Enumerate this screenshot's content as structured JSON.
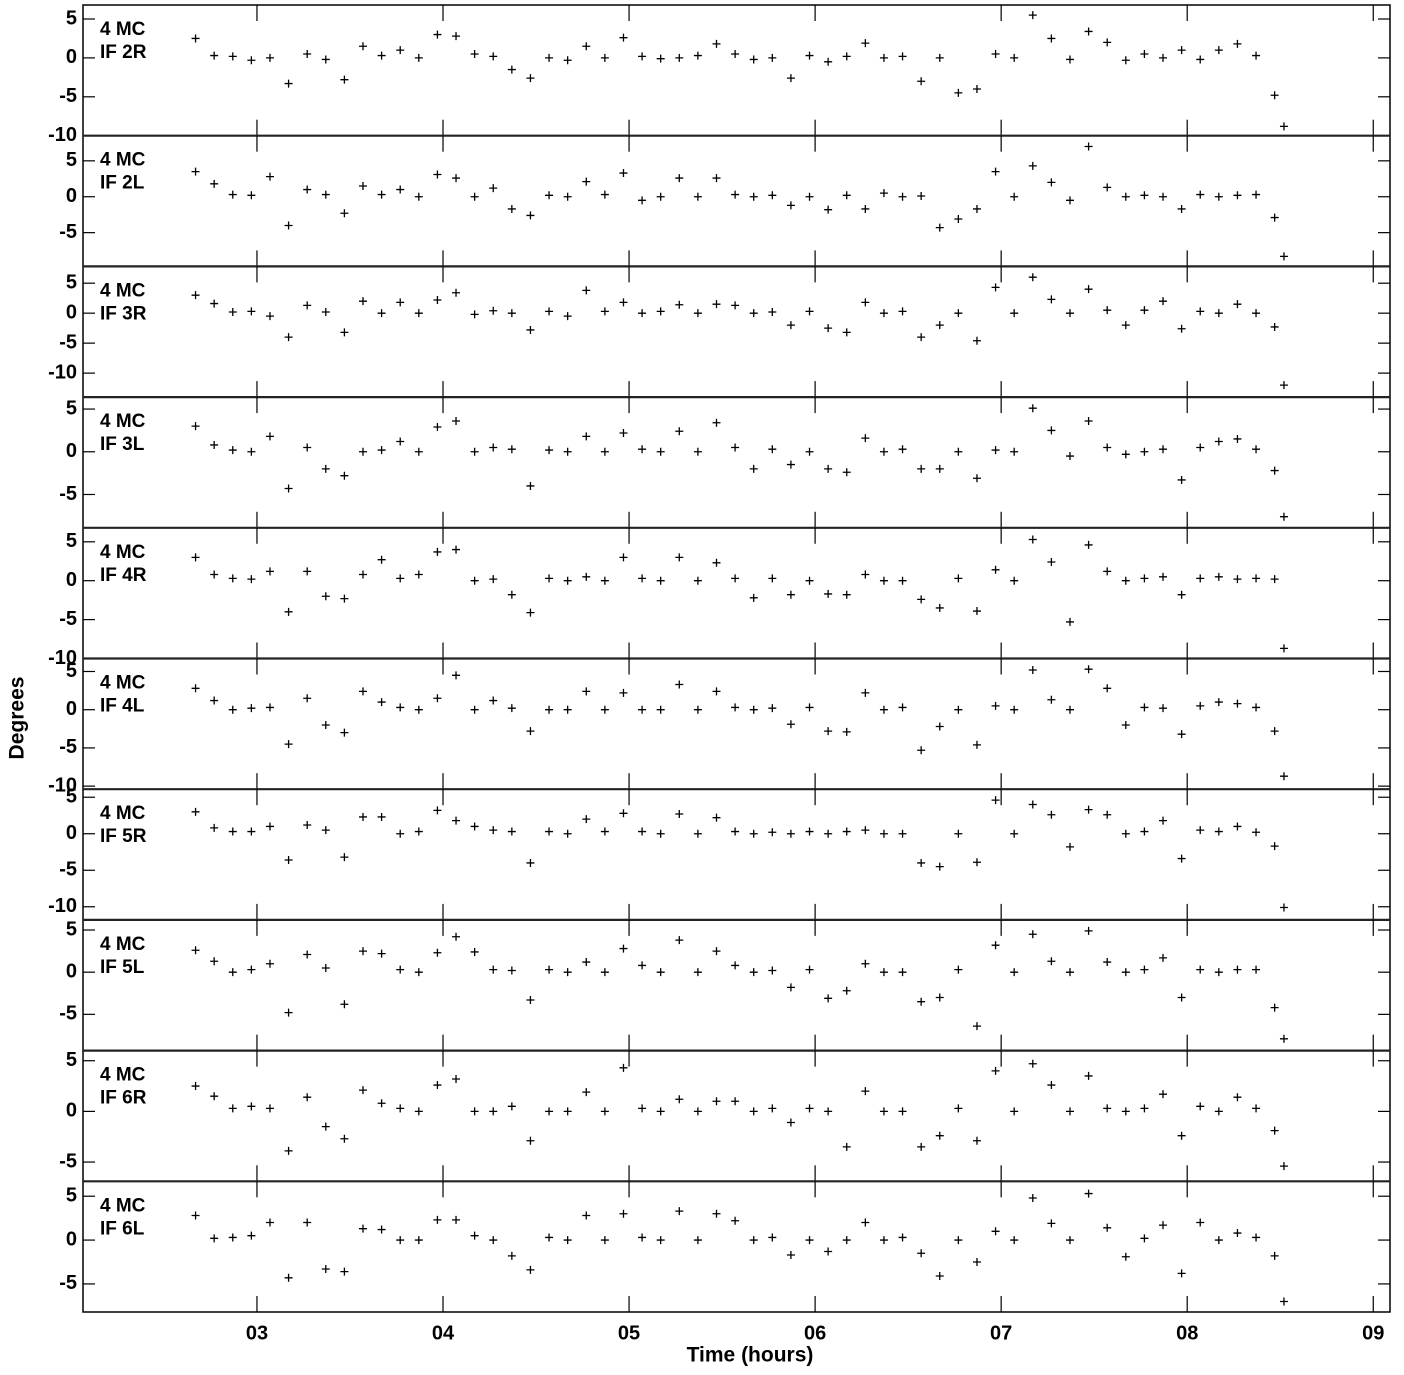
{
  "chart_data": {
    "type": "scatter",
    "xlabel": "Time (hours)",
    "ylabel": "Degrees",
    "color": "#000000",
    "xlim": [
      2.065,
      9.09
    ],
    "xticks": [
      {
        "value": 3,
        "label": "03"
      },
      {
        "value": 4,
        "label": "04"
      },
      {
        "value": 5,
        "label": "05"
      },
      {
        "value": 6,
        "label": "06"
      },
      {
        "value": 7,
        "label": "07"
      },
      {
        "value": 8,
        "label": "08"
      },
      {
        "value": 9,
        "label": "09"
      }
    ],
    "x": [
      2.67,
      2.77,
      2.87,
      2.97,
      3.07,
      3.17,
      3.27,
      3.37,
      3.47,
      3.57,
      3.67,
      3.77,
      3.87,
      3.97,
      4.07,
      4.17,
      4.27,
      4.37,
      4.47,
      4.57,
      4.67,
      4.77,
      4.87,
      4.97,
      5.07,
      5.17,
      5.27,
      5.37,
      5.47,
      5.57,
      5.67,
      5.77,
      5.87,
      5.97,
      6.07,
      6.17,
      6.27,
      6.37,
      6.47,
      6.57,
      6.67,
      6.77,
      6.87,
      6.97,
      7.07,
      7.17,
      7.27,
      7.37,
      7.47,
      7.57,
      7.67,
      7.77,
      7.87,
      7.97,
      8.07,
      8.17,
      8.27,
      8.37,
      8.47,
      8.52
    ],
    "panels": [
      {
        "labels": [
          "4 MC",
          "IF 2R"
        ],
        "ylim": [
          -10,
          6.8
        ],
        "yticks": [
          -10,
          -5,
          0,
          5
        ],
        "values": [
          2.5,
          0.3,
          0.2,
          -0.3,
          0,
          -3.3,
          0.5,
          -0.2,
          -2.8,
          1.5,
          0.3,
          1,
          0,
          3,
          2.8,
          0.5,
          0.2,
          -1.5,
          -2.6,
          0,
          -0.3,
          1.5,
          0,
          2.6,
          0.2,
          -0.1,
          0,
          0.3,
          1.8,
          0.5,
          -0.2,
          0,
          -2.6,
          0.3,
          -0.5,
          0.2,
          1.9,
          0,
          0.2,
          -3,
          0,
          -4.5,
          -4,
          0.5,
          0,
          5.5,
          2.5,
          -0.2,
          3.4,
          2,
          -0.3,
          0.5,
          0,
          1,
          -0.2,
          1,
          1.8,
          0.3,
          -4.8,
          -8.8
        ]
      },
      {
        "labels": [
          "4 MC",
          "IF 2L"
        ],
        "ylim": [
          -9.7,
          8.5
        ],
        "yticks": [
          -5,
          0,
          5
        ],
        "values": [
          3.5,
          1.8,
          0.3,
          0.2,
          2.8,
          -4,
          1,
          0.3,
          -2.3,
          1.5,
          0.3,
          1,
          0,
          3.1,
          2.6,
          0,
          1.2,
          -1.7,
          -2.6,
          0.2,
          0,
          2.1,
          0.3,
          3.3,
          -0.5,
          0,
          2.6,
          0,
          2.6,
          0.3,
          0,
          0.2,
          -1.2,
          0,
          -1.8,
          0.2,
          -1.7,
          0.5,
          0,
          0.1,
          -4.3,
          -3.1,
          -1.7,
          3.5,
          0,
          4.3,
          2,
          -0.5,
          7,
          1.3,
          0,
          0.2,
          0,
          -1.7,
          0.3,
          0,
          0.2,
          0.3,
          -2.9,
          -8.3
        ]
      },
      {
        "labels": [
          "4 MC",
          "IF 3R"
        ],
        "ylim": [
          -14,
          7.8
        ],
        "yticks": [
          -10,
          -5,
          0,
          5
        ],
        "values": [
          3,
          1.6,
          0.2,
          0.3,
          -0.5,
          -4,
          1.3,
          0.2,
          -3.2,
          2,
          0,
          1.8,
          0,
          2.2,
          3.4,
          -0.2,
          0.4,
          0,
          -2.8,
          0.3,
          -0.5,
          3.8,
          0.3,
          1.8,
          0,
          0.3,
          1.4,
          0,
          1.5,
          1.3,
          0,
          0.2,
          -2,
          0.3,
          -2.5,
          -3.2,
          1.8,
          0,
          0.3,
          -4,
          -2,
          0,
          -4.6,
          4.3,
          0,
          6,
          2.3,
          0,
          4,
          0.5,
          -2,
          0.5,
          2,
          -2.6,
          0.3,
          0,
          1.5,
          0,
          -2.3,
          -12
        ]
      },
      {
        "labels": [
          "4 MC",
          "IF 3L"
        ],
        "ylim": [
          -8.9,
          6.4
        ],
        "yticks": [
          -5,
          0,
          5
        ],
        "values": [
          3,
          0.8,
          0.2,
          0,
          1.8,
          -4.3,
          0.5,
          -2,
          -2.8,
          0,
          0.2,
          1.2,
          0,
          2.9,
          3.6,
          0,
          0.5,
          0.3,
          -4,
          0.2,
          0,
          1.8,
          0,
          2.2,
          0.3,
          0,
          2.4,
          0,
          3.4,
          0.5,
          -2,
          0.3,
          -1.5,
          0,
          -2,
          -2.4,
          1.6,
          0,
          0.3,
          -2,
          -2,
          0,
          -3.1,
          0.2,
          0,
          5.1,
          2.5,
          -0.5,
          3.6,
          0.5,
          -0.3,
          0,
          0.3,
          -3.3,
          0.5,
          1.2,
          1.5,
          0.3,
          -2.2,
          -7.6
        ]
      },
      {
        "labels": [
          "4 MC",
          "IF 4R"
        ],
        "ylim": [
          -10,
          6.8
        ],
        "yticks": [
          -10,
          -5,
          0,
          5
        ],
        "values": [
          3,
          0.8,
          0.3,
          0.2,
          1.2,
          -4,
          1.2,
          -2,
          -2.3,
          0.8,
          2.7,
          0.3,
          0.8,
          3.7,
          4,
          0,
          0.2,
          -1.8,
          -4.1,
          0.3,
          0,
          0.5,
          0,
          3,
          0.3,
          0,
          3,
          0,
          2.3,
          0.3,
          -2.2,
          0.3,
          -1.8,
          0,
          -1.7,
          -1.8,
          0.8,
          0,
          0,
          -2.4,
          -3.5,
          0.3,
          -3.9,
          1.4,
          0,
          5.3,
          2.4,
          -5.3,
          4.6,
          1.2,
          0,
          0.3,
          0.5,
          -1.8,
          0.3,
          0.5,
          0.2,
          0.3,
          0.2,
          -8.7
        ]
      },
      {
        "labels": [
          "4 MC",
          "IF 4L"
        ],
        "ylim": [
          -10.4,
          6.7
        ],
        "yticks": [
          -10,
          -5,
          0,
          5
        ],
        "values": [
          2.8,
          1.2,
          0,
          0.2,
          0.3,
          -4.5,
          1.5,
          -2,
          -3,
          2.4,
          1,
          0.3,
          0,
          1.5,
          4.5,
          0,
          1.2,
          0.2,
          -2.8,
          0,
          0,
          2.4,
          0,
          2.2,
          0,
          0,
          3.3,
          0,
          2.4,
          0.3,
          0,
          0.2,
          -1.9,
          0.3,
          -2.8,
          -2.9,
          2.2,
          0,
          0.3,
          -5.3,
          -2.2,
          0,
          -4.6,
          0.5,
          0,
          5.2,
          1.3,
          0,
          5.3,
          2.8,
          -2,
          0.3,
          0.2,
          -3.2,
          0.5,
          1,
          0.8,
          0.3,
          -2.8,
          -8.7
        ]
      },
      {
        "labels": [
          "4 MC",
          "IF 5R"
        ],
        "ylim": [
          -11.8,
          6.1
        ],
        "yticks": [
          -10,
          -5,
          0,
          5
        ],
        "values": [
          3,
          0.8,
          0.3,
          0.3,
          1,
          -3.6,
          1.2,
          0.5,
          -3.2,
          2.3,
          2.3,
          0,
          0.3,
          3.2,
          1.8,
          1,
          0.5,
          0.3,
          -4,
          0.3,
          0,
          2,
          0.3,
          2.8,
          0.3,
          0,
          2.7,
          0,
          2.2,
          0.3,
          0,
          0.2,
          0,
          0.3,
          0,
          0.3,
          0.5,
          0,
          0,
          -4,
          -4.5,
          0,
          -3.9,
          4.6,
          0,
          4,
          2.6,
          -1.8,
          3.3,
          2.6,
          0,
          0.3,
          1.8,
          -3.4,
          0.5,
          0.3,
          1,
          0.2,
          -1.7,
          -10.1
        ]
      },
      {
        "labels": [
          "4 MC",
          "IF 5L"
        ],
        "ylim": [
          -9.3,
          6.2
        ],
        "yticks": [
          -5,
          0,
          5
        ],
        "values": [
          2.6,
          1.3,
          0,
          0.3,
          1,
          -4.8,
          2.1,
          0.5,
          -3.8,
          2.5,
          2.2,
          0.3,
          0,
          2.3,
          4.2,
          2.4,
          0.3,
          0.2,
          -3.3,
          0.3,
          0,
          1.2,
          0,
          2.8,
          0.8,
          0,
          3.8,
          0,
          2.5,
          0.8,
          0,
          0.2,
          -1.8,
          0.3,
          -3.1,
          -2.2,
          1,
          0,
          0,
          -3.5,
          -3,
          0.3,
          -6.4,
          3.2,
          0,
          4.5,
          1.3,
          0,
          4.9,
          1.2,
          0,
          0.3,
          1.7,
          -3,
          0.3,
          0,
          0.3,
          0.3,
          -4.2,
          -7.9
        ]
      },
      {
        "labels": [
          "4 MC",
          "IF 6R"
        ],
        "ylim": [
          -6.9,
          6
        ],
        "yticks": [
          -5,
          0,
          5
        ],
        "values": [
          2.5,
          1.5,
          0.3,
          0.5,
          0.3,
          -3.9,
          1.4,
          -1.5,
          -2.7,
          2.1,
          0.8,
          0.3,
          0,
          2.6,
          3.2,
          0,
          0,
          0.5,
          -2.9,
          0,
          0,
          1.9,
          0,
          4.3,
          0.3,
          0,
          1.2,
          0,
          1,
          1,
          0,
          0.3,
          -1.1,
          0.3,
          0,
          -3.5,
          2,
          0,
          0,
          -3.5,
          -2.4,
          0.3,
          -2.9,
          4,
          0,
          4.7,
          2.6,
          0,
          3.5,
          0.3,
          0,
          0.3,
          1.7,
          -2.4,
          0.5,
          0,
          1.4,
          0.3,
          -1.9,
          -5.4
        ]
      },
      {
        "labels": [
          "4 MC",
          "IF 6L"
        ],
        "ylim": [
          -8.2,
          6.7
        ],
        "yticks": [
          -5,
          0,
          5
        ],
        "values": [
          2.8,
          0.2,
          0.3,
          0.5,
          2,
          -4.3,
          2,
          -3.3,
          -3.6,
          1.3,
          1.2,
          0,
          0,
          2.3,
          2.3,
          0.5,
          0,
          -1.8,
          -3.4,
          0.3,
          0,
          2.8,
          0,
          3,
          0.3,
          0,
          3.3,
          0,
          3,
          2.2,
          0,
          0.3,
          -1.7,
          0,
          -1.3,
          0,
          2,
          0,
          0.3,
          -1.5,
          -4.1,
          0,
          -2.5,
          1,
          0,
          4.8,
          1.9,
          0,
          5.3,
          1.4,
          -1.9,
          0.2,
          1.7,
          -3.8,
          2,
          0,
          0.8,
          0.3,
          -1.8,
          -7
        ]
      }
    ]
  }
}
